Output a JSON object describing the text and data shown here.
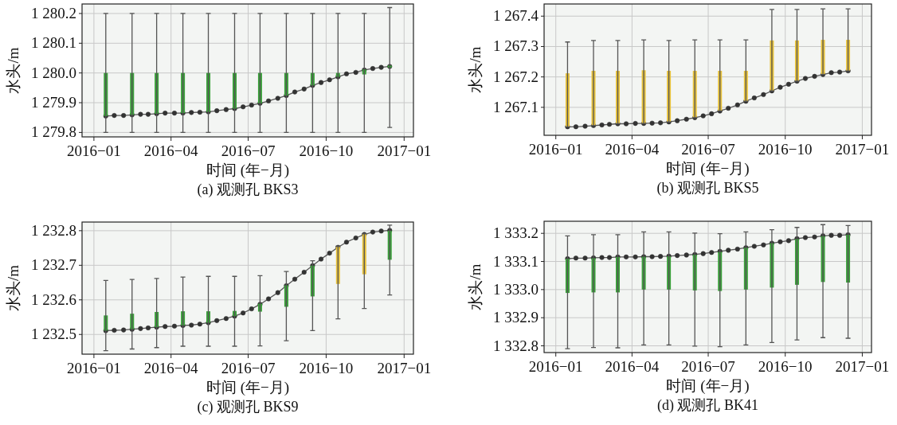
{
  "chart_data": [
    {
      "type": "candlestick",
      "title": "(a) 观测孔 BKS3",
      "xlabel": "时间 (年−月)",
      "ylabel": "水头/m",
      "grid": true,
      "xlim": [
        "2015-12-18",
        "2017-01-12"
      ],
      "xticks": [
        {
          "value": "2016-01",
          "label": "2016−01"
        },
        {
          "value": "2016-04",
          "label": "2016−04"
        },
        {
          "value": "2016-07",
          "label": "2016−07"
        },
        {
          "value": "2016-10",
          "label": "2016−10"
        },
        {
          "value": "2017-01",
          "label": "2017−01"
        }
      ],
      "ylim": [
        1279.785,
        1280.232
      ],
      "yticks": [
        {
          "value": 1279.8,
          "label": "1 279.8"
        },
        {
          "value": 1279.9,
          "label": "1 279.9"
        },
        {
          "value": 1280.0,
          "label": "1 280.0"
        },
        {
          "value": 1280.1,
          "label": "1 280.1"
        },
        {
          "value": 1280.2,
          "label": "1 280.2"
        }
      ],
      "x": [
        "2016-01-15",
        "2016-02-15",
        "2016-03-15",
        "2016-04-15",
        "2016-05-15",
        "2016-06-15",
        "2016-07-15",
        "2016-08-15",
        "2016-09-15",
        "2016-10-15",
        "2016-11-15",
        "2016-12-15"
      ],
      "ohlc": [
        [
          1279.855,
          1280.2,
          1279.8,
          1280.0
        ],
        [
          1279.859,
          1280.2,
          1279.8,
          1280.0
        ],
        [
          1279.863,
          1280.2,
          1279.8,
          1280.0
        ],
        [
          1279.865,
          1280.2,
          1279.8,
          1280.0
        ],
        [
          1279.869,
          1280.2,
          1279.8,
          1280.0
        ],
        [
          1279.88,
          1280.2,
          1279.8,
          1280.0
        ],
        [
          1279.898,
          1280.2,
          1279.8,
          1280.0
        ],
        [
          1279.924,
          1280.2,
          1279.8,
          1280.0
        ],
        [
          1279.958,
          1280.2,
          1279.8,
          1280.0
        ],
        [
          1279.987,
          1280.2,
          1279.8,
          1280.0
        ],
        [
          1279.995,
          1280.2,
          1279.8,
          1280.012
        ],
        [
          1280.018,
          1280.22,
          1279.817,
          1280.025
        ]
      ],
      "colors": [
        "#3aa03a",
        "#3aa03a",
        "#3aa03a",
        "#3aa03a",
        "#3aa03a",
        "#3aa03a",
        "#3aa03a",
        "#3aa03a",
        "#3aa03a",
        "#3aa03a",
        "#3aa03a",
        "#3aa03a"
      ],
      "series": [
        {
          "type": "line",
          "color": "#555555",
          "marker": "circle",
          "x": [
            "2016-01-15",
            "2016-01-25",
            "2016-02-05",
            "2016-02-15",
            "2016-02-25",
            "2016-03-05",
            "2016-03-15",
            "2016-03-25",
            "2016-04-05",
            "2016-04-15",
            "2016-04-25",
            "2016-05-05",
            "2016-05-15",
            "2016-05-25",
            "2016-06-05",
            "2016-06-15",
            "2016-06-25",
            "2016-07-05",
            "2016-07-15",
            "2016-07-25",
            "2016-08-05",
            "2016-08-15",
            "2016-08-25",
            "2016-09-05",
            "2016-09-15",
            "2016-09-25",
            "2016-10-05",
            "2016-10-15",
            "2016-10-25",
            "2016-11-05",
            "2016-11-15",
            "2016-11-25",
            "2016-12-05",
            "2016-12-15"
          ],
          "values": [
            1279.855,
            1279.857,
            1279.857,
            1279.859,
            1279.861,
            1279.861,
            1279.863,
            1279.865,
            1279.865,
            1279.865,
            1279.867,
            1279.868,
            1279.869,
            1279.873,
            1279.877,
            1279.88,
            1279.886,
            1279.892,
            1279.898,
            1279.906,
            1279.915,
            1279.924,
            1279.936,
            1279.946,
            1279.958,
            1279.968,
            1279.977,
            1279.987,
            1279.997,
            1280.002,
            1280.01,
            1280.015,
            1280.019,
            1280.022
          ]
        }
      ]
    },
    {
      "type": "candlestick",
      "title": "(b) 观测孔 BKS5",
      "xlabel": "时间 (年−月)",
      "ylabel": "水头/m",
      "grid": true,
      "xlim": [
        "2015-12-18",
        "2017-01-12"
      ],
      "xticks": [
        {
          "value": "2016-01",
          "label": "2016−01"
        },
        {
          "value": "2016-04",
          "label": "2016−04"
        },
        {
          "value": "2016-07",
          "label": "2016−07"
        },
        {
          "value": "2016-10",
          "label": "2016−10"
        },
        {
          "value": "2017-01",
          "label": "2017−01"
        }
      ],
      "ylim": [
        1267.008,
        1267.44
      ],
      "yticks": [
        {
          "value": 1267.1,
          "label": "1 267.1"
        },
        {
          "value": 1267.2,
          "label": "1 267.2"
        },
        {
          "value": 1267.3,
          "label": "1 267.3"
        },
        {
          "value": 1267.4,
          "label": "1 267.4"
        }
      ],
      "x": [
        "2016-01-15",
        "2016-02-15",
        "2016-03-15",
        "2016-04-15",
        "2016-05-15",
        "2016-06-15",
        "2016-07-15",
        "2016-08-15",
        "2016-09-15",
        "2016-10-15",
        "2016-11-15",
        "2016-12-15"
      ],
      "ohlc": [
        [
          1267.036,
          1267.315,
          1267.036,
          1267.212
        ],
        [
          1267.04,
          1267.32,
          1267.04,
          1267.22
        ],
        [
          1267.046,
          1267.32,
          1267.046,
          1267.22
        ],
        [
          1267.047,
          1267.322,
          1267.047,
          1267.222
        ],
        [
          1267.052,
          1267.32,
          1267.052,
          1267.22
        ],
        [
          1267.066,
          1267.322,
          1267.066,
          1267.22
        ],
        [
          1267.088,
          1267.322,
          1267.088,
          1267.22
        ],
        [
          1267.12,
          1267.322,
          1267.12,
          1267.22
        ],
        [
          1267.154,
          1267.422,
          1267.154,
          1267.32
        ],
        [
          1267.186,
          1267.422,
          1267.186,
          1267.32
        ],
        [
          1267.208,
          1267.424,
          1267.208,
          1267.322
        ],
        [
          1267.22,
          1267.424,
          1267.22,
          1267.322
        ]
      ],
      "colors": [
        "#e8c23a",
        "#e8c23a",
        "#e8c23a",
        "#e8c23a",
        "#e8c23a",
        "#e8c23a",
        "#e8c23a",
        "#e8c23a",
        "#e8c23a",
        "#e8c23a",
        "#e8c23a",
        "#e8c23a"
      ],
      "series": [
        {
          "type": "line",
          "color": "#555555",
          "marker": "circle",
          "x": [
            "2016-01-15",
            "2016-01-25",
            "2016-02-05",
            "2016-02-15",
            "2016-02-25",
            "2016-03-05",
            "2016-03-15",
            "2016-03-25",
            "2016-04-05",
            "2016-04-15",
            "2016-04-25",
            "2016-05-05",
            "2016-05-15",
            "2016-05-25",
            "2016-06-05",
            "2016-06-15",
            "2016-06-25",
            "2016-07-05",
            "2016-07-15",
            "2016-07-25",
            "2016-08-05",
            "2016-08-15",
            "2016-08-25",
            "2016-09-05",
            "2016-09-15",
            "2016-09-25",
            "2016-10-05",
            "2016-10-15",
            "2016-10-25",
            "2016-11-05",
            "2016-11-15",
            "2016-11-25",
            "2016-12-05",
            "2016-12-15"
          ],
          "values": [
            1267.036,
            1267.036,
            1267.038,
            1267.04,
            1267.042,
            1267.044,
            1267.046,
            1267.046,
            1267.047,
            1267.047,
            1267.048,
            1267.049,
            1267.052,
            1267.056,
            1267.061,
            1267.066,
            1267.072,
            1267.079,
            1267.088,
            1267.097,
            1267.108,
            1267.12,
            1267.131,
            1267.142,
            1267.154,
            1267.166,
            1267.176,
            1267.186,
            1267.195,
            1267.202,
            1267.208,
            1267.214,
            1267.216,
            1267.22
          ]
        }
      ]
    },
    {
      "type": "candlestick",
      "title": "(c) 观测孔 BKS9",
      "xlabel": "时间 (年−月)",
      "ylabel": "水头/m",
      "grid": true,
      "xlim": [
        "2015-12-18",
        "2017-01-12"
      ],
      "xticks": [
        {
          "value": "2016-01",
          "label": "2016−01"
        },
        {
          "value": "2016-04",
          "label": "2016−04"
        },
        {
          "value": "2016-07",
          "label": "2016−07"
        },
        {
          "value": "2016-10",
          "label": "2016−10"
        },
        {
          "value": "2017-01",
          "label": "2017−01"
        }
      ],
      "ylim": [
        1232.443,
        1232.825
      ],
      "yticks": [
        {
          "value": 1232.5,
          "label": "1 232.5"
        },
        {
          "value": 1232.6,
          "label": "1 232.6"
        },
        {
          "value": 1232.7,
          "label": "1 232.7"
        },
        {
          "value": 1232.8,
          "label": "1 232.8"
        }
      ],
      "x": [
        "2016-01-15",
        "2016-02-15",
        "2016-03-15",
        "2016-04-15",
        "2016-05-15",
        "2016-06-15",
        "2016-07-15",
        "2016-08-15",
        "2016-09-15",
        "2016-10-15",
        "2016-11-15",
        "2016-12-15"
      ],
      "ohlc": [
        [
          1232.511,
          1232.656,
          1232.453,
          1232.555
        ],
        [
          1232.515,
          1232.659,
          1232.458,
          1232.56
        ],
        [
          1232.521,
          1232.662,
          1232.462,
          1232.565
        ],
        [
          1232.526,
          1232.666,
          1232.466,
          1232.567
        ],
        [
          1232.534,
          1232.668,
          1232.466,
          1232.567
        ],
        [
          1232.553,
          1232.668,
          1232.466,
          1232.568
        ],
        [
          1232.566,
          1232.67,
          1232.467,
          1232.589
        ],
        [
          1232.58,
          1232.682,
          1232.482,
          1232.642
        ],
        [
          1232.61,
          1232.713,
          1232.511,
          1232.699
        ],
        [
          1232.753,
          1232.755,
          1232.545,
          1232.646
        ],
        [
          1232.791,
          1232.791,
          1232.575,
          1232.674
        ],
        [
          1232.716,
          1232.816,
          1232.614,
          1232.8
        ]
      ],
      "colors": [
        "#3aa03a",
        "#3aa03a",
        "#3aa03a",
        "#3aa03a",
        "#3aa03a",
        "#3aa03a",
        "#3aa03a",
        "#3aa03a",
        "#3aa03a",
        "#e8c23a",
        "#e8c23a",
        "#3aa03a"
      ],
      "series": [
        {
          "type": "line",
          "color": "#555555",
          "marker": "circle",
          "x": [
            "2016-01-15",
            "2016-01-25",
            "2016-02-05",
            "2016-02-15",
            "2016-02-25",
            "2016-03-05",
            "2016-03-15",
            "2016-03-25",
            "2016-04-05",
            "2016-04-15",
            "2016-04-25",
            "2016-05-05",
            "2016-05-15",
            "2016-05-25",
            "2016-06-05",
            "2016-06-15",
            "2016-06-25",
            "2016-07-05",
            "2016-07-15",
            "2016-07-25",
            "2016-08-05",
            "2016-08-15",
            "2016-08-25",
            "2016-09-05",
            "2016-09-15",
            "2016-09-25",
            "2016-10-05",
            "2016-10-15",
            "2016-10-25",
            "2016-11-05",
            "2016-11-15",
            "2016-11-25",
            "2016-12-05",
            "2016-12-15"
          ],
          "values": [
            1232.511,
            1232.512,
            1232.513,
            1232.515,
            1232.517,
            1232.519,
            1232.521,
            1232.523,
            1232.524,
            1232.526,
            1232.527,
            1232.53,
            1232.534,
            1232.54,
            1232.546,
            1232.553,
            1232.562,
            1232.574,
            1232.587,
            1232.603,
            1232.621,
            1232.641,
            1232.66,
            1232.68,
            1232.699,
            1232.718,
            1232.735,
            1232.752,
            1232.767,
            1232.779,
            1232.789,
            1232.796,
            1232.799,
            1232.801
          ]
        }
      ]
    },
    {
      "type": "candlestick",
      "title": "(d) 观测孔 BK41",
      "xlabel": "时间 (年−月)",
      "ylabel": "水头/m",
      "grid": true,
      "xlim": [
        "2015-12-18",
        "2017-01-12"
      ],
      "xticks": [
        {
          "value": "2016-01",
          "label": "2016−01"
        },
        {
          "value": "2016-04",
          "label": "2016−04"
        },
        {
          "value": "2016-07",
          "label": "2016−07"
        },
        {
          "value": "2016-10",
          "label": "2016−10"
        },
        {
          "value": "2017-01",
          "label": "2017−01"
        }
      ],
      "ylim": [
        1332.776,
        1333.243
      ],
      "yticks": [
        {
          "value": 1332.8,
          "label": "1 332.8"
        },
        {
          "value": 1332.9,
          "label": "1 332.9"
        },
        {
          "value": 1333.0,
          "label": "1 333.0"
        },
        {
          "value": 1333.1,
          "label": "1 333.1"
        },
        {
          "value": 1333.2,
          "label": "1 333.2"
        }
      ],
      "x": [
        "2016-01-15",
        "2016-02-15",
        "2016-03-15",
        "2016-04-15",
        "2016-05-15",
        "2016-06-15",
        "2016-07-15",
        "2016-08-15",
        "2016-09-15",
        "2016-10-15",
        "2016-11-15",
        "2016-12-15"
      ],
      "ohlc": [
        [
          1333.11,
          1333.191,
          1332.79,
          1332.988
        ],
        [
          1333.112,
          1333.195,
          1332.794,
          1332.99
        ],
        [
          1333.116,
          1333.195,
          1332.793,
          1332.99
        ],
        [
          1333.117,
          1333.205,
          1332.803,
          1333.0
        ],
        [
          1333.118,
          1333.205,
          1332.803,
          1333.0
        ],
        [
          1333.124,
          1333.201,
          1332.799,
          1332.997
        ],
        [
          1333.134,
          1333.199,
          1332.797,
          1332.995
        ],
        [
          1333.149,
          1333.205,
          1332.803,
          1333.0
        ],
        [
          1333.165,
          1333.213,
          1332.812,
          1333.007
        ],
        [
          1333.18,
          1333.221,
          1332.821,
          1333.017
        ],
        [
          1333.19,
          1333.231,
          1332.829,
          1333.027
        ],
        [
          1333.195,
          1333.228,
          1332.827,
          1333.025
        ]
      ],
      "colors": [
        "#3aa03a",
        "#3aa03a",
        "#3aa03a",
        "#3aa03a",
        "#3aa03a",
        "#3aa03a",
        "#3aa03a",
        "#3aa03a",
        "#3aa03a",
        "#3aa03a",
        "#3aa03a",
        "#3aa03a"
      ],
      "series": [
        {
          "type": "line",
          "color": "#555555",
          "marker": "circle",
          "x": [
            "2016-01-15",
            "2016-01-25",
            "2016-02-05",
            "2016-02-15",
            "2016-02-25",
            "2016-03-05",
            "2016-03-15",
            "2016-03-25",
            "2016-04-05",
            "2016-04-15",
            "2016-04-25",
            "2016-05-05",
            "2016-05-15",
            "2016-05-25",
            "2016-06-05",
            "2016-06-15",
            "2016-06-25",
            "2016-07-05",
            "2016-07-15",
            "2016-07-25",
            "2016-08-05",
            "2016-08-15",
            "2016-08-25",
            "2016-09-05",
            "2016-09-15",
            "2016-09-25",
            "2016-10-05",
            "2016-10-15",
            "2016-10-25",
            "2016-11-05",
            "2016-11-15",
            "2016-11-25",
            "2016-12-05",
            "2016-12-15"
          ],
          "values": [
            1333.11,
            1333.112,
            1333.112,
            1333.113,
            1333.114,
            1333.114,
            1333.116,
            1333.116,
            1333.116,
            1333.117,
            1333.117,
            1333.118,
            1333.119,
            1333.121,
            1333.123,
            1333.125,
            1333.128,
            1333.132,
            1333.136,
            1333.14,
            1333.144,
            1333.149,
            1333.154,
            1333.159,
            1333.165,
            1333.17,
            1333.174,
            1333.181,
            1333.185,
            1333.187,
            1333.191,
            1333.193,
            1333.193,
            1333.195
          ]
        }
      ]
    }
  ]
}
